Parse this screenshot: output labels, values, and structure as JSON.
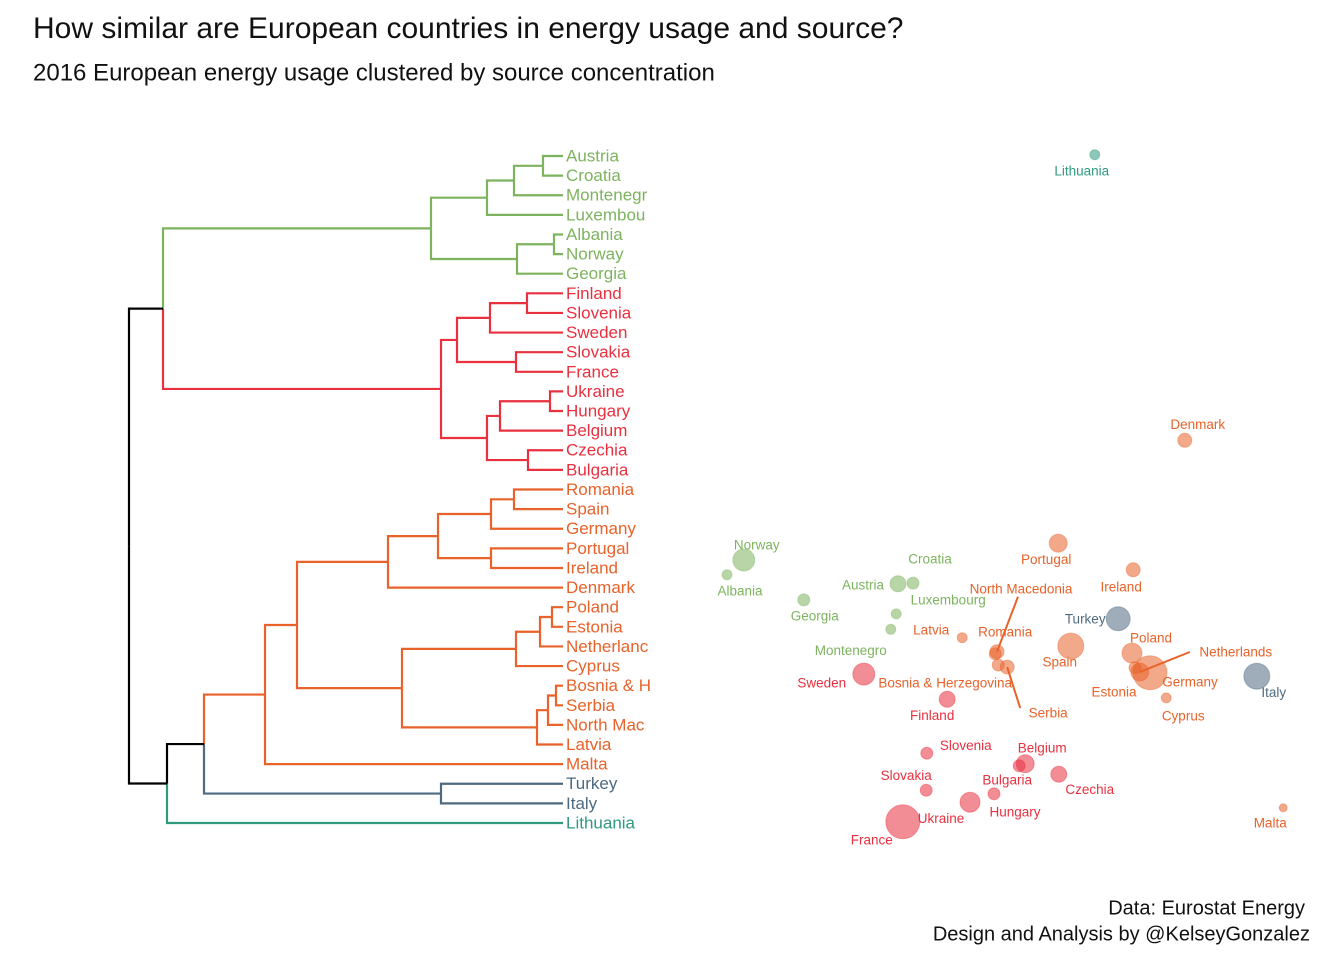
{
  "title": "How similar are European countries in energy usage and source?",
  "subtitle": "2016 European energy usage clustered by source concentration",
  "caption": [
    "Data: Eurostat Energy",
    "Design and Analysis by @KelseyGonzalez"
  ],
  "chart_data": [
    {
      "type": "dendrogram",
      "leaves": [
        "Austria",
        "Croatia",
        "Montenegr",
        "Luxembou",
        "Albania",
        "Norway",
        "Georgia",
        "Finland",
        "Slovenia",
        "Sweden",
        "Slovakia",
        "France",
        "Ukraine",
        "Hungary",
        "Belgium",
        "Czechia",
        "Bulgaria",
        "Romania",
        "Spain",
        "Germany",
        "Portugal",
        "Ireland",
        "Denmark",
        "Poland",
        "Estonia",
        "Netherlanc",
        "Cyprus",
        "Bosnia & H",
        "Serbia",
        "North Mac",
        "Latvia",
        "Malta",
        "Turkey",
        "Italy",
        "Lithuania"
      ],
      "leaf_colors": [
        "#7db35e",
        "#7db35e",
        "#7db35e",
        "#7db35e",
        "#7db35e",
        "#7db35e",
        "#7db35e",
        "#e8303f",
        "#e8303f",
        "#e8303f",
        "#e8303f",
        "#e8303f",
        "#e8303f",
        "#e8303f",
        "#e8303f",
        "#e8303f",
        "#e8303f",
        "#e8622a",
        "#e8622a",
        "#e8622a",
        "#e8622a",
        "#e8622a",
        "#e8622a",
        "#e8622a",
        "#e8622a",
        "#e8622a",
        "#e8622a",
        "#e8622a",
        "#e8622a",
        "#e8622a",
        "#e8622a",
        "#e8622a",
        "#4e6a80",
        "#4e6a80",
        "#2e9a7e"
      ],
      "merges": [
        [
          0,
          1,
          17
        ],
        [
          35,
          2,
          46
        ],
        [
          36,
          3,
          73
        ],
        [
          4,
          5,
          6
        ],
        [
          38,
          6,
          43
        ],
        [
          37,
          39,
          129
        ],
        [
          7,
          8,
          33
        ],
        [
          41,
          9,
          70
        ],
        [
          10,
          11,
          44
        ],
        [
          42,
          43,
          103
        ],
        [
          12,
          13,
          10
        ],
        [
          45,
          14,
          60
        ],
        [
          15,
          16,
          32
        ],
        [
          46,
          47,
          73
        ],
        [
          44,
          48,
          119
        ],
        [
          40,
          49,
          397
        ],
        [
          17,
          18,
          46
        ],
        [
          51,
          19,
          69
        ],
        [
          20,
          21,
          69
        ],
        [
          52,
          53,
          122
        ],
        [
          54,
          22,
          172
        ],
        [
          23,
          24,
          8
        ],
        [
          56,
          25,
          20
        ],
        [
          57,
          26,
          44
        ],
        [
          27,
          28,
          4
        ],
        [
          59,
          29,
          12
        ],
        [
          60,
          30,
          23
        ],
        [
          58,
          61,
          158
        ],
        [
          55,
          62,
          263
        ],
        [
          63,
          31,
          295
        ],
        [
          32,
          33,
          119
        ],
        [
          64,
          65,
          356
        ],
        [
          66,
          34,
          393
        ],
        [
          50,
          67,
          431
        ]
      ],
      "xlim": [
        431,
        0
      ]
    },
    {
      "type": "scatter",
      "labels": [
        "Lithuania",
        "Denmark",
        "Norway",
        "Albania",
        "Portugal",
        "Ireland",
        "Croatia",
        "Austria",
        "Georgia",
        "Luxembourg",
        "Montenegro",
        "Turkey",
        "Latvia",
        "Spain",
        "Poland",
        "Netherlands",
        "Germany",
        "Estonia",
        "Italy",
        "North Macedonia",
        "Romania",
        "Bosnia & Herzegovina",
        "Serbia",
        "Cyprus",
        "Sweden",
        "Finland",
        "Slovenia",
        "Belgium",
        "Bulgaria",
        "Czechia",
        "Hungary",
        "Ukraine",
        "Slovakia",
        "France",
        "Malta"
      ],
      "x": [
        65.8,
        80.8,
        7.3,
        4.5,
        59.7,
        72.2,
        35.5,
        33.0,
        17.3,
        32.7,
        31.8,
        69.7,
        43.7,
        61.8,
        72.0,
        73.3,
        75.0,
        72.5,
        92.8,
        49.5,
        49.2,
        49.7,
        51.2,
        77.7,
        27.3,
        41.2,
        37.8,
        54.2,
        53.2,
        59.8,
        49.0,
        45.0,
        37.7,
        33.8,
        97.2
      ],
      "y": [
        97.9,
        57.1,
        40.0,
        37.9,
        42.4,
        38.6,
        36.7,
        36.6,
        34.3,
        32.3,
        30.1,
        31.6,
        28.9,
        27.7,
        26.7,
        24.0,
        23.9,
        24.6,
        23.4,
        26.9,
        26.6,
        25.0,
        24.7,
        20.3,
        23.7,
        20.1,
        12.4,
        10.9,
        10.6,
        9.4,
        6.6,
        5.4,
        7.1,
        2.6,
        4.6
      ],
      "sizes": [
        5,
        7,
        11,
        5,
        9,
        7,
        6,
        8,
        6,
        5,
        5,
        12,
        5,
        13,
        10,
        9,
        17,
        6,
        13,
        7,
        6,
        6,
        7,
        5,
        11,
        8,
        6,
        9,
        6,
        8,
        6,
        10,
        6,
        17,
        4
      ],
      "colors": [
        "#2e9a7e",
        "#e8622a",
        "#7db35e",
        "#7db35e",
        "#e8622a",
        "#e8622a",
        "#7db35e",
        "#7db35e",
        "#7db35e",
        "#7db35e",
        "#7db35e",
        "#4e6a80",
        "#e8622a",
        "#e8622a",
        "#e8622a",
        "#e8622a",
        "#e8622a",
        "#e8622a",
        "#4e6a80",
        "#e8622a",
        "#e8622a",
        "#e8622a",
        "#e8622a",
        "#e8622a",
        "#e8303f",
        "#e8303f",
        "#e8303f",
        "#e8303f",
        "#e8303f",
        "#e8303f",
        "#e8303f",
        "#e8303f",
        "#e8303f",
        "#e8303f",
        "#e8622a"
      ],
      "xlim": [
        0,
        100
      ],
      "ylim": [
        0,
        100
      ]
    }
  ]
}
